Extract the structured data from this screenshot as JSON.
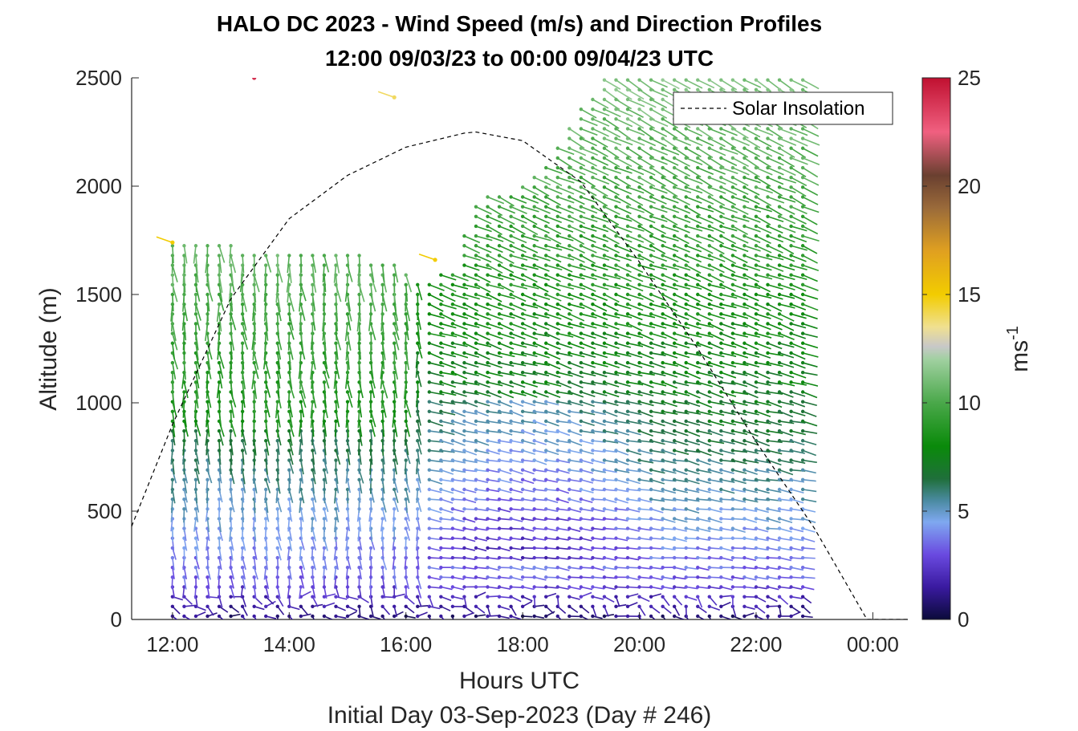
{
  "chart_data": {
    "type": "wind-barb-profile",
    "title_line1": "HALO DC 2023 - Wind Speed (m/s) and Direction Profiles",
    "title_line2": "12:00 09/03/23 to 00:00 09/04/23  UTC",
    "xlabel": "Hours UTC",
    "ylabel": "Altitude (m)",
    "subtitle": "Initial Day 03-Sep-2023 (Day # 246)",
    "xlim_hours": [
      11.3,
      24.6
    ],
    "ylim": [
      0,
      2500
    ],
    "xticks": [
      {
        "hour": 12,
        "label": "12:00"
      },
      {
        "hour": 14,
        "label": "14:00"
      },
      {
        "hour": 16,
        "label": "16:00"
      },
      {
        "hour": 18,
        "label": "18:00"
      },
      {
        "hour": 20,
        "label": "20:00"
      },
      {
        "hour": 22,
        "label": "22:00"
      },
      {
        "hour": 24,
        "label": "00:00"
      }
    ],
    "yticks": [
      0,
      500,
      1000,
      1500,
      2000,
      2500
    ],
    "colorbar": {
      "label_main": "ms",
      "label_sup": "-1",
      "ticks": [
        0,
        5,
        10,
        15,
        20,
        25
      ],
      "range": [
        0,
        25
      ],
      "stops": [
        {
          "v": 0,
          "color": "#0b0b3a"
        },
        {
          "v": 1.5,
          "color": "#3a1aa0"
        },
        {
          "v": 3,
          "color": "#6a4ae0"
        },
        {
          "v": 4.5,
          "color": "#7fa8f0"
        },
        {
          "v": 5.5,
          "color": "#4a8aa0"
        },
        {
          "v": 6.5,
          "color": "#1f6f3a"
        },
        {
          "v": 8,
          "color": "#0a8a0a"
        },
        {
          "v": 10,
          "color": "#4aa84a"
        },
        {
          "v": 12,
          "color": "#a0d0a0"
        },
        {
          "v": 12.6,
          "color": "#c8c8c8"
        },
        {
          "v": 13.5,
          "color": "#f0e090"
        },
        {
          "v": 15,
          "color": "#f2cc00"
        },
        {
          "v": 17,
          "color": "#e0a020"
        },
        {
          "v": 19,
          "color": "#9a6a3a"
        },
        {
          "v": 20.5,
          "color": "#6a4030"
        },
        {
          "v": 22.5,
          "color": "#f06080"
        },
        {
          "v": 25,
          "color": "#c01030"
        }
      ]
    },
    "legend": {
      "entry": "Solar Insolation",
      "style": "dashed-black",
      "placement": "top-right"
    },
    "solar_insolation": {
      "description": "normalized solar insolation curve (dashed)",
      "points": [
        {
          "hour": 11.3,
          "alt": 430
        },
        {
          "hour": 12.0,
          "alt": 900
        },
        {
          "hour": 13.0,
          "alt": 1480
        },
        {
          "hour": 14.0,
          "alt": 1850
        },
        {
          "hour": 15.0,
          "alt": 2050
        },
        {
          "hour": 16.0,
          "alt": 2180
        },
        {
          "hour": 17.0,
          "alt": 2245
        },
        {
          "hour": 17.2,
          "alt": 2250
        },
        {
          "hour": 18.0,
          "alt": 2210
        },
        {
          "hour": 19.0,
          "alt": 2020
        },
        {
          "hour": 20.0,
          "alt": 1650
        },
        {
          "hour": 21.0,
          "alt": 1250
        },
        {
          "hour": 22.0,
          "alt": 820
        },
        {
          "hour": 23.0,
          "alt": 420
        },
        {
          "hour": 23.9,
          "alt": 0
        },
        {
          "hour": 24.6,
          "alt": 0
        }
      ]
    },
    "profiles_summary": {
      "profile_times_start": 12.0,
      "profile_times_end": 22.8,
      "profile_spacing_hours": 0.2,
      "range_gate_m": 30,
      "min_alt_m": 15,
      "speed_regimes": [
        {
          "alt_range": [
            0,
            200
          ],
          "speed_ms": [
            0.5,
            3
          ],
          "note": "light winds, purple/navy barbs"
        },
        {
          "alt_range": [
            200,
            900
          ],
          "speed_ms": [
            3,
            7
          ],
          "note": "blue to teal, purple pool 16:00-20:00 at 300-1000 m"
        },
        {
          "alt_range": [
            900,
            2500
          ],
          "speed_ms": [
            7,
            12
          ],
          "note": "green barbs"
        }
      ],
      "top_altitude_by_hour": [
        {
          "hour": 12.0,
          "alt": 1740
        },
        {
          "hour": 15.0,
          "alt": 1700
        },
        {
          "hour": 15.8,
          "alt": 1640
        },
        {
          "hour": 16.2,
          "alt": 1560
        },
        {
          "hour": 16.8,
          "alt": 1620
        },
        {
          "hour": 17.2,
          "alt": 1950
        },
        {
          "hour": 18.0,
          "alt": 2000
        },
        {
          "hour": 18.5,
          "alt": 2150
        },
        {
          "hour": 19.0,
          "alt": 2380
        },
        {
          "hour": 19.4,
          "alt": 2500
        },
        {
          "hour": 22.8,
          "alt": 2500
        }
      ],
      "isolated_points": [
        {
          "hour": 13.4,
          "alt": 2500,
          "speed_ms": 24
        },
        {
          "hour": 12.0,
          "alt": 1740,
          "speed_ms": 15
        },
        {
          "hour": 15.8,
          "alt": 2410,
          "speed_ms": 14
        },
        {
          "hour": 16.5,
          "alt": 1660,
          "speed_ms": 15
        }
      ]
    }
  }
}
